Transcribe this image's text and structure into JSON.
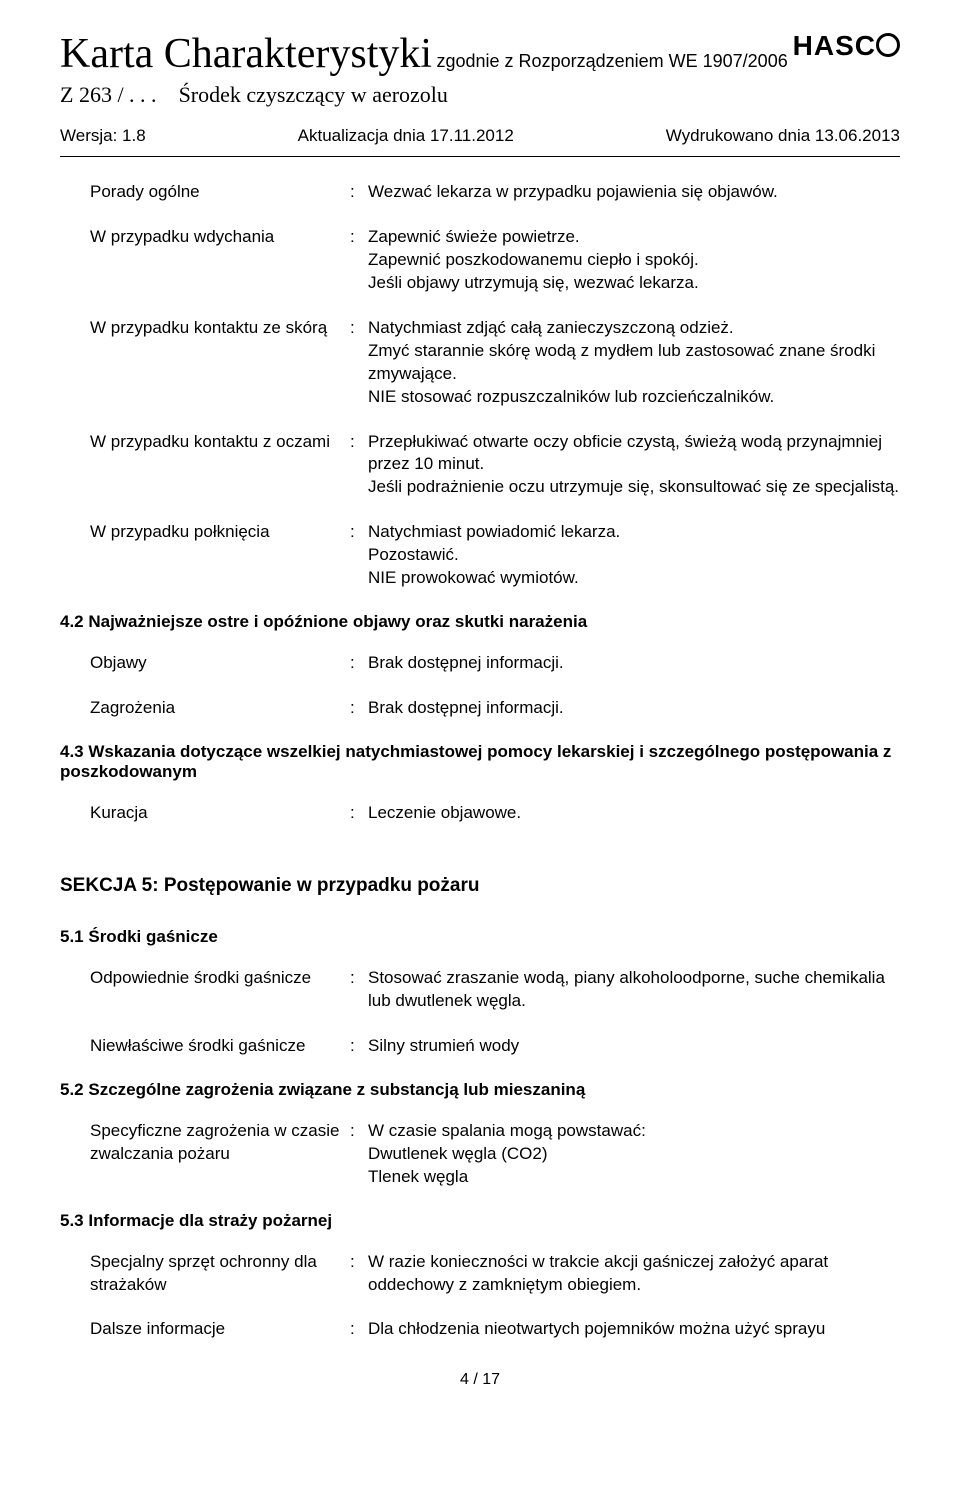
{
  "colors": {
    "text": "#000000",
    "background": "#ffffff"
  },
  "header": {
    "logo": "HASCO",
    "title_main": "Karta Charakterystyki",
    "title_suffix": "zgodnie z Rozporządzeniem WE 1907/2006",
    "subtitle_code": "Z 263 / . . .",
    "subtitle_name": "Środek czyszczący w aerozolu",
    "version_label": "Wersja: 1.8",
    "update_label": "Aktualizacja dnia 17.11.2012",
    "print_label": "Wydrukowano dnia 13.06.2013"
  },
  "rows": [
    {
      "label": "Porady ogólne",
      "value": "Wezwać lekarza w przypadku pojawienia się objawów."
    },
    {
      "label": "W przypadku wdychania",
      "value": "Zapewnić świeże powietrze.\nZapewnić poszkodowanemu ciepło i spokój.\nJeśli objawy utrzymują się, wezwać lekarza."
    },
    {
      "label": "W przypadku kontaktu ze skórą",
      "value": "Natychmiast zdjąć całą zanieczyszczoną odzież.\nZmyć starannie skórę wodą z mydłem lub zastosować znane środki zmywające.\nNIE stosować rozpuszczalników lub rozcieńczalników."
    },
    {
      "label": "W przypadku kontaktu z oczami",
      "value": "Przepłukiwać otwarte oczy obficie czystą, świeżą wodą przynajmniej przez 10 minut.\nJeśli podrażnienie oczu utrzymuje się, skonsultować się ze specjalistą."
    },
    {
      "label": "W przypadku połknięcia",
      "value": "Natychmiast powiadomić lekarza.\nPozostawić.\nNIE prowokować wymiotów."
    }
  ],
  "sec42": {
    "heading": "4.2 Najważniejsze ostre i opóźnione objawy oraz skutki narażenia",
    "rows": [
      {
        "label": "Objawy",
        "value": "Brak dostępnej informacji."
      },
      {
        "label": "Zagrożenia",
        "value": "Brak dostępnej informacji."
      }
    ]
  },
  "sec43": {
    "heading": "4.3 Wskazania dotyczące wszelkiej natychmiastowej pomocy lekarskiej i szczególnego postępowania z poszkodowanym",
    "rows": [
      {
        "label": "Kuracja",
        "value": "Leczenie objawowe."
      }
    ]
  },
  "sec5": {
    "heading": "SEKCJA 5: Postępowanie w przypadku pożaru"
  },
  "sec51": {
    "heading": "5.1 Środki gaśnicze",
    "rows": [
      {
        "label": "Odpowiednie środki gaśnicze",
        "value": "Stosować zraszanie wodą, piany alkoholoodporne, suche chemikalia lub dwutlenek węgla."
      },
      {
        "label": "Niewłaściwe środki gaśnicze",
        "value": "Silny strumień wody"
      }
    ]
  },
  "sec52": {
    "heading": "5.2 Szczególne zagrożenia związane z substancją lub mieszaniną",
    "rows": [
      {
        "label": "Specyficzne zagrożenia w czasie zwalczania pożaru",
        "value": "W czasie spalania mogą powstawać:\nDwutlenek węgla (CO2)\nTlenek węgla"
      }
    ]
  },
  "sec53": {
    "heading": "5.3 Informacje dla straży pożarnej",
    "rows": [
      {
        "label": "Specjalny sprzęt ochronny dla strażaków",
        "value": "W razie konieczności w trakcie akcji gaśniczej założyć aparat oddechowy z zamkniętym obiegiem."
      },
      {
        "label": "Dalsze informacje",
        "value": "Dla chłodzenia nieotwartych pojemników można użyć sprayu"
      }
    ]
  },
  "page": "4 / 17"
}
